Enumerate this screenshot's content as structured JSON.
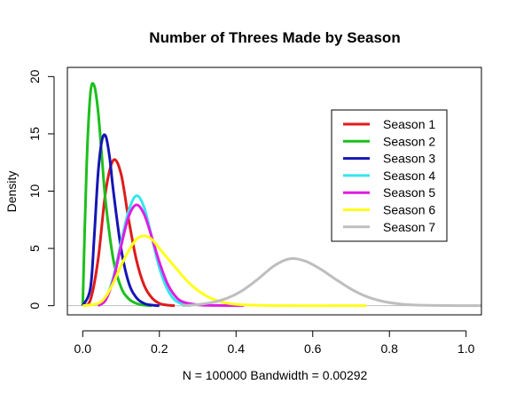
{
  "chart_data": {
    "type": "line",
    "title": "Number of Threes Made by Season",
    "xlabel": "N = 100000   Bandwidth = 0.00292",
    "ylabel": "Density",
    "xlim": [
      -0.04,
      1.04
    ],
    "ylim": [
      -0.8,
      20.8
    ],
    "x_ticks": [
      "0.0",
      "0.2",
      "0.4",
      "0.6",
      "0.8",
      "1.0"
    ],
    "y_ticks": [
      "0",
      "5",
      "10",
      "15",
      "20"
    ],
    "grid": false,
    "legend_position": "top-right",
    "baseline": 0,
    "series": [
      {
        "name": "Season 1",
        "color": "#DF1B1B",
        "x": [
          0.0,
          0.02,
          0.04,
          0.06,
          0.08,
          0.1,
          0.12,
          0.14,
          0.16,
          0.18,
          0.2,
          0.22,
          0.24
        ],
        "y": [
          0.0,
          0.5,
          4.0,
          10.0,
          12.7,
          11.5,
          7.5,
          4.0,
          1.8,
          0.7,
          0.2,
          0.05,
          0.0
        ]
      },
      {
        "name": "Season 2",
        "color": "#1DBF1D",
        "x": [
          0.0,
          0.01,
          0.02,
          0.03,
          0.04,
          0.05,
          0.06,
          0.08,
          0.1,
          0.12,
          0.14,
          0.16,
          0.18
        ],
        "y": [
          0.0,
          12.0,
          18.5,
          19.2,
          17.0,
          13.0,
          9.0,
          4.0,
          1.6,
          0.6,
          0.2,
          0.05,
          0.0
        ]
      },
      {
        "name": "Season 3",
        "color": "#1515B5",
        "x": [
          0.0,
          0.02,
          0.03,
          0.04,
          0.05,
          0.06,
          0.07,
          0.08,
          0.1,
          0.12,
          0.14,
          0.16,
          0.18,
          0.2
        ],
        "y": [
          0.0,
          1.5,
          6.0,
          11.5,
          14.4,
          14.8,
          13.0,
          10.0,
          5.0,
          2.0,
          0.7,
          0.2,
          0.05,
          0.0
        ]
      },
      {
        "name": "Season 4",
        "color": "#33E6EE",
        "x": [
          0.04,
          0.06,
          0.08,
          0.1,
          0.12,
          0.14,
          0.16,
          0.18,
          0.2,
          0.22,
          0.24,
          0.26,
          0.28
        ],
        "y": [
          0.0,
          0.6,
          2.5,
          5.5,
          8.3,
          9.6,
          8.6,
          6.0,
          3.3,
          1.5,
          0.5,
          0.15,
          0.0
        ]
      },
      {
        "name": "Season 5",
        "color": "#E01DE0",
        "x": [
          0.04,
          0.06,
          0.08,
          0.1,
          0.12,
          0.14,
          0.16,
          0.18,
          0.2,
          0.22,
          0.24,
          0.26,
          0.3,
          0.35,
          0.42
        ],
        "y": [
          0.0,
          0.5,
          2.3,
          5.2,
          7.8,
          8.8,
          8.0,
          6.0,
          3.8,
          2.0,
          0.9,
          0.35,
          0.08,
          0.02,
          0.0
        ]
      },
      {
        "name": "Season 6",
        "color": "#FFFF1A",
        "x": [
          0.0,
          0.04,
          0.06,
          0.08,
          0.1,
          0.12,
          0.14,
          0.16,
          0.18,
          0.2,
          0.24,
          0.28,
          0.32,
          0.36,
          0.4,
          0.46,
          0.55,
          0.65,
          0.74
        ],
        "y": [
          0.0,
          0.2,
          0.8,
          2.0,
          3.5,
          4.8,
          5.8,
          6.1,
          5.8,
          5.0,
          3.4,
          1.9,
          0.9,
          0.35,
          0.12,
          0.03,
          0.0,
          0.0,
          0.0
        ]
      },
      {
        "name": "Season 7",
        "color": "#BEBEBE",
        "x": [
          0.26,
          0.3,
          0.34,
          0.38,
          0.42,
          0.46,
          0.5,
          0.54,
          0.58,
          0.62,
          0.66,
          0.7,
          0.74,
          0.78,
          0.82,
          0.86,
          0.92,
          1.04
        ],
        "y": [
          0.0,
          0.1,
          0.3,
          0.7,
          1.4,
          2.4,
          3.5,
          4.1,
          3.9,
          3.2,
          2.3,
          1.45,
          0.8,
          0.4,
          0.18,
          0.07,
          0.02,
          0.0
        ]
      }
    ]
  }
}
